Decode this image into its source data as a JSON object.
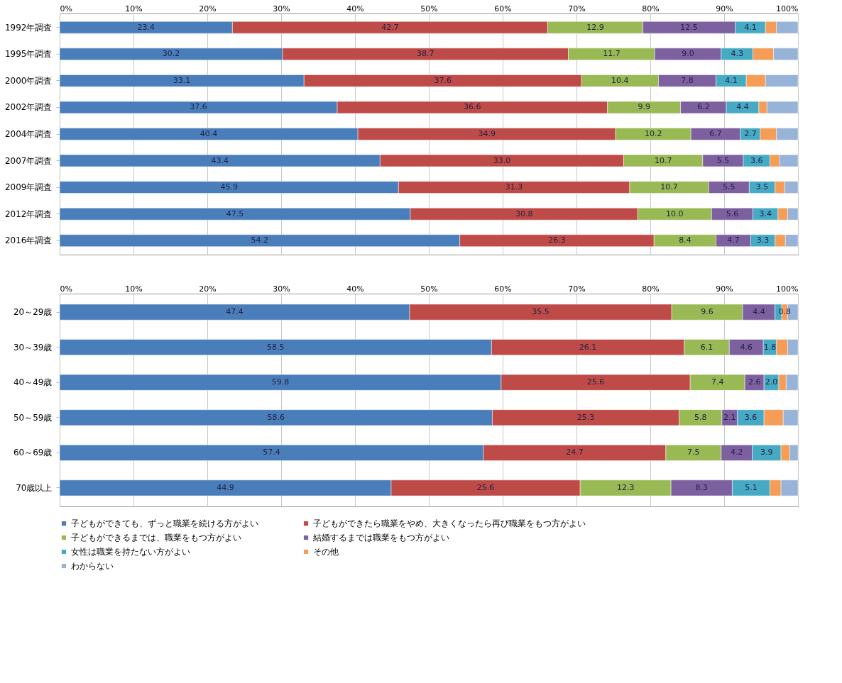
{
  "chart_data": [
    {
      "type": "bar",
      "orientation": "horizontal",
      "stacked": true,
      "grid": "x",
      "legend": false,
      "categories": [
        "1992年調査",
        "1995年調査",
        "2000年調査",
        "2002年調査",
        "2004年調査",
        "2007年調査",
        "2009年調査",
        "2012年調査",
        "2016年調査"
      ],
      "xlim": [
        0,
        100
      ],
      "xticks": [
        {
          "value": 0,
          "label": "0%"
        },
        {
          "value": 10,
          "label": "10%"
        },
        {
          "value": 20,
          "label": "20%"
        },
        {
          "value": 30,
          "label": "30%"
        },
        {
          "value": 40,
          "label": "40%"
        },
        {
          "value": 50,
          "label": "50%"
        },
        {
          "value": 60,
          "label": "60%"
        },
        {
          "value": 70,
          "label": "70%"
        },
        {
          "value": 80,
          "label": "80%"
        },
        {
          "value": 90,
          "label": "90%"
        },
        {
          "value": 100,
          "label": "100%"
        }
      ],
      "series": [
        {
          "color": "#4a7ebb",
          "values": [
            23.4,
            30.2,
            33.1,
            37.6,
            40.4,
            43.4,
            45.9,
            47.5,
            54.2
          ],
          "value_labels": [
            "23.4",
            "30.2",
            "33.1",
            "37.6",
            "40.4",
            "43.4",
            "45.9",
            "47.5",
            "54.2"
          ]
        },
        {
          "color": "#be4b48",
          "values": [
            42.7,
            38.7,
            37.6,
            36.6,
            34.9,
            33.0,
            31.3,
            30.8,
            26.3
          ],
          "value_labels": [
            "42.7",
            "38.7",
            "37.6",
            "36.6",
            "34.9",
            "33.0",
            "31.3",
            "30.8",
            "26.3"
          ]
        },
        {
          "color": "#98b954",
          "values": [
            12.9,
            11.7,
            10.4,
            9.9,
            10.2,
            10.7,
            10.7,
            10.0,
            8.4
          ],
          "value_labels": [
            "12.9",
            "11.7",
            "10.4",
            "9.9",
            "10.2",
            "10.7",
            "10.7",
            "10.0",
            "8.4"
          ]
        },
        {
          "color": "#7d60a0",
          "values": [
            12.5,
            9.0,
            7.8,
            6.2,
            6.7,
            5.5,
            5.5,
            5.6,
            4.7
          ],
          "value_labels": [
            "12.5",
            "9.0",
            "7.8",
            "6.2",
            "6.7",
            "5.5",
            "5.5",
            "5.6",
            "4.7"
          ]
        },
        {
          "color": "#46aac5",
          "values": [
            4.1,
            4.3,
            4.1,
            4.4,
            2.7,
            3.6,
            3.5,
            3.4,
            3.3
          ],
          "value_labels": [
            "4.1",
            "4.3",
            "4.1",
            "4.4",
            "2.7",
            "3.6",
            "3.5",
            "3.4",
            "3.3"
          ]
        },
        {
          "color": "#f59d56",
          "values": [
            1.5,
            2.8,
            2.6,
            1.1,
            2.2,
            1.3,
            1.3,
            1.3,
            1.4
          ]
        },
        {
          "color": "#97b3d8",
          "values": [
            2.9,
            3.3,
            4.4,
            4.2,
            2.9,
            2.5,
            1.8,
            1.4,
            1.7
          ]
        }
      ]
    },
    {
      "type": "bar",
      "orientation": "horizontal",
      "stacked": true,
      "grid": "x",
      "legend": "bottom",
      "categories": [
        "20～29歳",
        "30～39歳",
        "40～49歳",
        "50～59歳",
        "60～69歳",
        "70歳以上"
      ],
      "xlim": [
        0,
        100
      ],
      "xticks": [
        {
          "value": 0,
          "label": "0%"
        },
        {
          "value": 10,
          "label": "10%"
        },
        {
          "value": 20,
          "label": "20%"
        },
        {
          "value": 30,
          "label": "30%"
        },
        {
          "value": 40,
          "label": "40%"
        },
        {
          "value": 50,
          "label": "50%"
        },
        {
          "value": 60,
          "label": "60%"
        },
        {
          "value": 70,
          "label": "70%"
        },
        {
          "value": 80,
          "label": "80%"
        },
        {
          "value": 90,
          "label": "90%"
        },
        {
          "value": 100,
          "label": "100%"
        }
      ],
      "series": [
        {
          "name": "子どもができても、ずっと職業を続ける方がよい",
          "color": "#4a7ebb",
          "values": [
            47.4,
            58.5,
            59.8,
            58.6,
            57.4,
            44.9
          ],
          "value_labels": [
            "47.4",
            "58.5",
            "59.8",
            "58.6",
            "57.4",
            "44.9"
          ]
        },
        {
          "name": "子どもができたら職業をやめ、大きくなったら再び職業をもつ方がよい",
          "color": "#be4b48",
          "values": [
            35.5,
            26.1,
            25.6,
            25.3,
            24.7,
            25.6
          ],
          "value_labels": [
            "35.5",
            "26.1",
            "25.6",
            "25.3",
            "24.7",
            "25.6"
          ]
        },
        {
          "name": "子どもができるまでは、職業をもつ方がよい",
          "color": "#98b954",
          "values": [
            9.6,
            6.1,
            7.4,
            5.8,
            7.5,
            12.3
          ],
          "value_labels": [
            "9.6",
            "6.1",
            "7.4",
            "5.8",
            "7.5",
            "12.3"
          ]
        },
        {
          "name": "結婚するまでは職業をもつ方がよい",
          "color": "#7d60a0",
          "values": [
            4.4,
            4.6,
            2.6,
            2.1,
            4.2,
            8.3
          ],
          "value_labels": [
            "4.4",
            "4.6",
            "2.6",
            "2.1",
            "4.2",
            "8.3"
          ]
        },
        {
          "name": "女性は職業を持たない方がよい",
          "color": "#46aac5",
          "values": [
            0.9,
            1.8,
            2.0,
            3.6,
            3.9,
            5.1
          ],
          "value_labels": [
            null,
            "1.8",
            "2.0",
            "3.6",
            "3.9",
            "5.1"
          ]
        },
        {
          "name": "その他",
          "color": "#f59d56",
          "values": [
            0.8,
            1.5,
            1.0,
            2.6,
            1.2,
            1.5
          ],
          "value_labels": [
            "0.8",
            null,
            null,
            null,
            null,
            null
          ]
        },
        {
          "name": "わからない",
          "color": "#97b3d8",
          "values": [
            1.4,
            1.4,
            1.6,
            2.0,
            1.1,
            2.3
          ]
        }
      ]
    }
  ]
}
